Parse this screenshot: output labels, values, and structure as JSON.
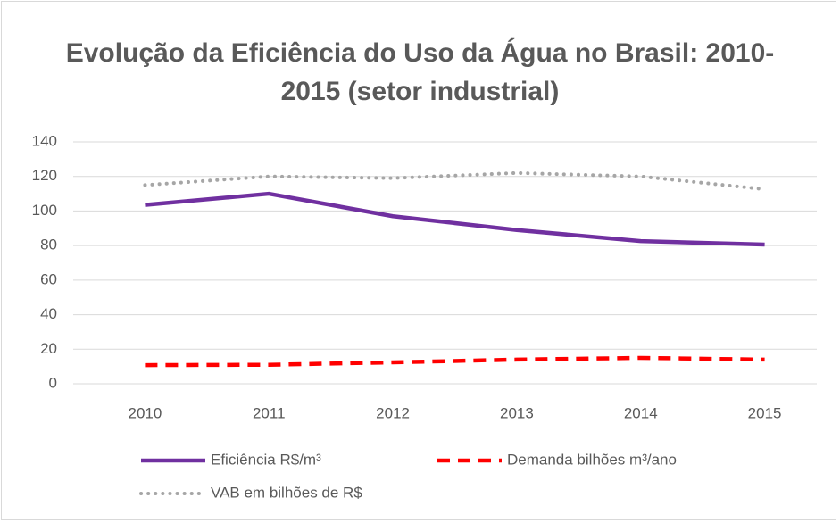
{
  "chart_data": {
    "type": "line",
    "title": "Evolução da Eficiência do Uso da Água no Brasil: 2010-2015 (setor industrial)",
    "categories": [
      "2010",
      "2011",
      "2012",
      "2013",
      "2014",
      "2015"
    ],
    "series": [
      {
        "name": "Eficiência R$/m³",
        "color": "#7030a0",
        "style": "solid",
        "values": [
          103.5,
          110,
          97,
          89,
          82.6,
          80.6
        ]
      },
      {
        "name": "Demanda bilhões m³/ano",
        "color": "#ff0000",
        "style": "dashed",
        "values": [
          10.8,
          11,
          12.4,
          14,
          15,
          14
        ]
      },
      {
        "name": "VAB em bilhões de R$",
        "color": "#a6a6a6",
        "style": "dotted",
        "values": [
          115,
          120,
          119,
          122,
          120,
          112.6
        ]
      }
    ],
    "ylim": [
      0,
      140
    ],
    "yticks": [
      0,
      20,
      40,
      60,
      80,
      100,
      120,
      140
    ],
    "grid": true,
    "legend": "bottom"
  }
}
